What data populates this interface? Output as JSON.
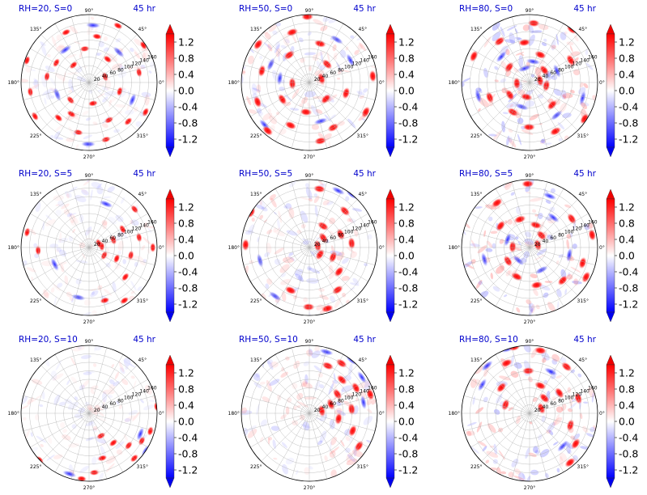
{
  "chart_data": [
    {
      "type": "heatmap",
      "projection": "polar",
      "title": "RH=20, S=0",
      "time_label": "45 hr",
      "rh": 20,
      "s": 0,
      "hotspots": [
        [
          0.35,
          40
        ],
        [
          0.9,
          70
        ],
        [
          1.4,
          110
        ],
        [
          2.0,
          130
        ],
        [
          2.6,
          90
        ],
        [
          3.3,
          140
        ],
        [
          3.9,
          60
        ],
        [
          4.5,
          120
        ],
        [
          5.2,
          100
        ],
        [
          5.8,
          150
        ],
        [
          0.2,
          120
        ],
        [
          1.1,
          150
        ],
        [
          2.3,
          55
        ],
        [
          3.0,
          100
        ],
        [
          3.7,
          150
        ],
        [
          4.2,
          85
        ],
        [
          4.9,
          50
        ],
        [
          5.5,
          130
        ],
        [
          6.0,
          75
        ],
        [
          0.6,
          155
        ],
        [
          1.7,
          80
        ],
        [
          2.8,
          155
        ],
        [
          4.0,
          110
        ],
        [
          5.0,
          140
        ]
      ],
      "cold": [
        [
          0.8,
          100
        ],
        [
          2.2,
          95
        ],
        [
          3.5,
          80
        ],
        [
          4.7,
          145
        ],
        [
          5.9,
          110
        ],
        [
          1.5,
          135
        ]
      ]
    },
    {
      "type": "heatmap",
      "projection": "polar",
      "title": "RH=50, S=0",
      "time_label": "45 hr",
      "rh": 50,
      "s": 0,
      "hotspots": [
        [
          0.3,
          30
        ],
        [
          0.8,
          60
        ],
        [
          1.3,
          95
        ],
        [
          1.9,
          125
        ],
        [
          2.5,
          150
        ],
        [
          3.2,
          40
        ],
        [
          3.7,
          75
        ],
        [
          4.3,
          110
        ],
        [
          4.9,
          140
        ],
        [
          5.5,
          55
        ],
        [
          6.0,
          90
        ],
        [
          0.1,
          150
        ],
        [
          1.6,
          155
        ],
        [
          2.9,
          115
        ],
        [
          4.0,
          150
        ],
        [
          5.2,
          120
        ],
        [
          2.2,
          80
        ],
        [
          3.5,
          130
        ],
        [
          4.6,
          70
        ],
        [
          5.8,
          150
        ]
      ],
      "cold": [
        [
          1.0,
          120
        ],
        [
          2.7,
          100
        ],
        [
          3.9,
          145
        ],
        [
          5.0,
          95
        ],
        [
          0.5,
          110
        ],
        [
          3.0,
          70
        ]
      ]
    },
    {
      "type": "heatmap",
      "projection": "polar",
      "title": "RH=80, S=0",
      "time_label": "45 hr",
      "rh": 80,
      "s": 0,
      "hotspots": [
        [
          0.2,
          25
        ],
        [
          0.7,
          45
        ],
        [
          1.2,
          70
        ],
        [
          1.7,
          95
        ],
        [
          2.2,
          120
        ],
        [
          2.7,
          145
        ],
        [
          3.2,
          30
        ],
        [
          3.7,
          55
        ],
        [
          4.2,
          80
        ],
        [
          4.7,
          105
        ],
        [
          5.2,
          130
        ],
        [
          5.7,
          155
        ],
        [
          6.1,
          40
        ],
        [
          0.5,
          110
        ],
        [
          1.5,
          140
        ],
        [
          2.5,
          60
        ],
        [
          3.5,
          100
        ],
        [
          4.5,
          35
        ],
        [
          5.5,
          75
        ],
        [
          0.9,
          160
        ]
      ],
      "cold": [
        [
          0.4,
          70
        ],
        [
          1.4,
          50
        ],
        [
          2.4,
          90
        ],
        [
          3.4,
          125
        ],
        [
          4.4,
          60
        ],
        [
          5.4,
          100
        ],
        [
          6.0,
          130
        ],
        [
          1.9,
          35
        ]
      ]
    },
    {
      "type": "heatmap",
      "projection": "polar",
      "title": "RH=20, S=5",
      "time_label": "45 hr",
      "rh": 20,
      "s": 5,
      "hotspots": [
        [
          0.1,
          30
        ],
        [
          0.3,
          60
        ],
        [
          0.5,
          90
        ],
        [
          0.2,
          120
        ],
        [
          0.0,
          150
        ],
        [
          5.9,
          70
        ],
        [
          5.6,
          110
        ],
        [
          5.3,
          150
        ],
        [
          5.0,
          130
        ],
        [
          0.7,
          140
        ],
        [
          6.1,
          100
        ],
        [
          2.9,
          150
        ],
        [
          3.2,
          120
        ],
        [
          0.4,
          25
        ],
        [
          5.8,
          40
        ]
      ],
      "cold": [
        [
          1.2,
          110
        ],
        [
          4.5,
          120
        ],
        [
          3.6,
          90
        ]
      ]
    },
    {
      "type": "heatmap",
      "projection": "polar",
      "title": "RH=50, S=5",
      "time_label": "45 hr",
      "rh": 50,
      "s": 5,
      "hotspots": [
        [
          0.2,
          20
        ],
        [
          0.6,
          40
        ],
        [
          1.0,
          60
        ],
        [
          0.4,
          80
        ],
        [
          0.1,
          100
        ],
        [
          5.9,
          60
        ],
        [
          5.6,
          90
        ],
        [
          5.3,
          120
        ],
        [
          5.0,
          150
        ],
        [
          4.7,
          140
        ],
        [
          4.3,
          110
        ],
        [
          0.8,
          120
        ],
        [
          1.4,
          140
        ],
        [
          3.1,
          150
        ],
        [
          2.6,
          160
        ],
        [
          5.7,
          30
        ]
      ],
      "cold": [
        [
          1.1,
          150
        ],
        [
          4.1,
          140
        ],
        [
          0.9,
          160
        ],
        [
          3.4,
          120
        ]
      ]
    },
    {
      "type": "heatmap",
      "projection": "polar",
      "title": "RH=80, S=5",
      "time_label": "45 hr",
      "rh": 80,
      "s": 5,
      "hotspots": [
        [
          0.3,
          20
        ],
        [
          0.8,
          40
        ],
        [
          1.3,
          55
        ],
        [
          1.9,
          70
        ],
        [
          2.5,
          85
        ],
        [
          3.1,
          40
        ],
        [
          3.7,
          60
        ],
        [
          4.3,
          75
        ],
        [
          4.9,
          90
        ],
        [
          5.5,
          110
        ],
        [
          6.0,
          130
        ],
        [
          0.2,
          150
        ],
        [
          0.6,
          120
        ],
        [
          5.8,
          150
        ],
        [
          1.6,
          150
        ],
        [
          2.2,
          130
        ]
      ],
      "cold": [
        [
          2.8,
          55
        ],
        [
          4.0,
          40
        ],
        [
          5.2,
          60
        ],
        [
          0.9,
          90
        ],
        [
          3.4,
          110
        ],
        [
          6.1,
          95
        ],
        [
          1.2,
          130
        ]
      ]
    },
    {
      "type": "heatmap",
      "projection": "polar",
      "title": "RH=20, S=10",
      "time_label": "45 hr",
      "rh": 20,
      "s": 10,
      "hotspots": [
        [
          5.2,
          60
        ],
        [
          5.4,
          90
        ],
        [
          5.6,
          120
        ],
        [
          5.8,
          140
        ],
        [
          6.0,
          150
        ],
        [
          5.0,
          110
        ],
        [
          4.8,
          140
        ],
        [
          4.6,
          155
        ],
        [
          5.5,
          150
        ],
        [
          0.1,
          160
        ],
        [
          3.9,
          160
        ]
      ],
      "cold": [
        [
          5.7,
          160
        ],
        [
          5.9,
          130
        ],
        [
          4.4,
          150
        ]
      ]
    },
    {
      "type": "heatmap",
      "projection": "polar",
      "title": "RH=50, S=10",
      "time_label": "45 hr",
      "rh": 50,
      "s": 10,
      "hotspots": [
        [
          0.2,
          30
        ],
        [
          0.4,
          55
        ],
        [
          0.6,
          80
        ],
        [
          0.8,
          110
        ],
        [
          1.0,
          140
        ],
        [
          0.1,
          100
        ],
        [
          6.1,
          70
        ],
        [
          5.9,
          110
        ],
        [
          0.3,
          150
        ],
        [
          1.2,
          120
        ],
        [
          0.5,
          125
        ],
        [
          5.7,
          140
        ]
      ],
      "cold": [
        [
          0.9,
          160
        ],
        [
          0.6,
          150
        ],
        [
          1.3,
          150
        ],
        [
          0.2,
          130
        ]
      ]
    },
    {
      "type": "heatmap",
      "projection": "polar",
      "title": "RH=80, S=10",
      "time_label": "45 hr",
      "rh": 80,
      "s": 10,
      "hotspots": [
        [
          0.4,
          30
        ],
        [
          0.8,
          50
        ],
        [
          1.2,
          70
        ],
        [
          1.6,
          100
        ],
        [
          2.0,
          130
        ],
        [
          1.4,
          150
        ],
        [
          0.9,
          140
        ],
        [
          0.3,
          120
        ],
        [
          6.0,
          100
        ],
        [
          5.7,
          130
        ],
        [
          5.4,
          150
        ],
        [
          2.4,
          90
        ],
        [
          2.8,
          60
        ],
        [
          0.6,
          85
        ],
        [
          1.8,
          160
        ]
      ],
      "cold": [
        [
          1.9,
          160
        ],
        [
          2.3,
          150
        ],
        [
          1.1,
          110
        ],
        [
          5.5,
          110
        ],
        [
          2.6,
          130
        ]
      ]
    }
  ],
  "polar_axes": {
    "angle_labels": [
      "0°",
      "45°",
      "90°",
      "135°",
      "180°",
      "225°",
      "270°",
      "315°"
    ],
    "radial_labels": [
      "20",
      "40",
      "60",
      "80",
      "100",
      "120",
      "140",
      "160"
    ],
    "rmax": 160
  },
  "colorbar": {
    "colormap": "bwr",
    "ticks": [
      "1.2",
      "0.8",
      "0.4",
      "0.0",
      "-0.4",
      "-0.8",
      "-1.2"
    ],
    "vmin": -1.4,
    "vmax": 1.4
  },
  "colors": {
    "title": "#0000cc",
    "positive": "#ff0000",
    "negative": "#0000ff",
    "grid": "#b0b0b0"
  }
}
